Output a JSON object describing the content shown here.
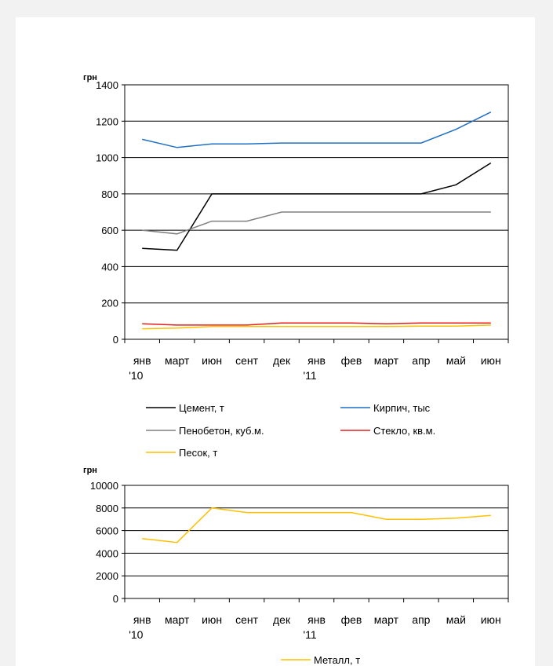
{
  "chart_data": [
    {
      "type": "line",
      "ylabel": "грн",
      "ylim": [
        0,
        1400
      ],
      "yticks": [
        0,
        200,
        400,
        600,
        800,
        1000,
        1200,
        1400
      ],
      "grid": true,
      "legend_position": "bottom",
      "categories": [
        [
          "янв",
          "'10"
        ],
        [
          "март"
        ],
        [
          "июн"
        ],
        [
          "сент"
        ],
        [
          "дек"
        ],
        [
          "янв",
          "'11"
        ],
        [
          "фев"
        ],
        [
          "март"
        ],
        [
          "апр"
        ],
        [
          "май"
        ],
        [
          "июн"
        ]
      ],
      "series": [
        {
          "name": "Цемент, т",
          "color": "#000000",
          "values": [
            500,
            490,
            800,
            800,
            800,
            800,
            800,
            800,
            800,
            850,
            970
          ]
        },
        {
          "name": "Кирпич, тыс",
          "color": "#1f6fc4",
          "values": [
            1100,
            1055,
            1075,
            1075,
            1080,
            1080,
            1080,
            1080,
            1080,
            1155,
            1250
          ]
        },
        {
          "name": "Пенобетон, куб.м.",
          "color": "#808080",
          "values": [
            600,
            580,
            650,
            650,
            700,
            700,
            700,
            700,
            700,
            700,
            700
          ]
        },
        {
          "name": "Стекло, кв.м.",
          "color": "#e0201f",
          "values": [
            85,
            78,
            78,
            78,
            90,
            90,
            90,
            85,
            90,
            90,
            90
          ]
        },
        {
          "name": "Песок, т",
          "color": "#ffc000",
          "values": [
            58,
            62,
            70,
            70,
            70,
            70,
            70,
            70,
            72,
            72,
            78
          ]
        }
      ]
    },
    {
      "type": "line",
      "ylabel": "грн",
      "ylim": [
        0,
        10000
      ],
      "yticks": [
        0,
        2000,
        4000,
        6000,
        8000,
        10000
      ],
      "grid": true,
      "legend_position": "bottom",
      "categories": [
        [
          "янв",
          "'10"
        ],
        [
          "март"
        ],
        [
          "июн"
        ],
        [
          "сент"
        ],
        [
          "дек"
        ],
        [
          "янв",
          "'11"
        ],
        [
          "фев"
        ],
        [
          "март"
        ],
        [
          "апр"
        ],
        [
          "май"
        ],
        [
          "июн"
        ]
      ],
      "series": [
        {
          "name": "Металл, т",
          "color": "#ffc000",
          "values": [
            5300,
            4950,
            8000,
            7600,
            7600,
            7600,
            7600,
            7000,
            7000,
            7100,
            7350
          ]
        }
      ]
    }
  ]
}
